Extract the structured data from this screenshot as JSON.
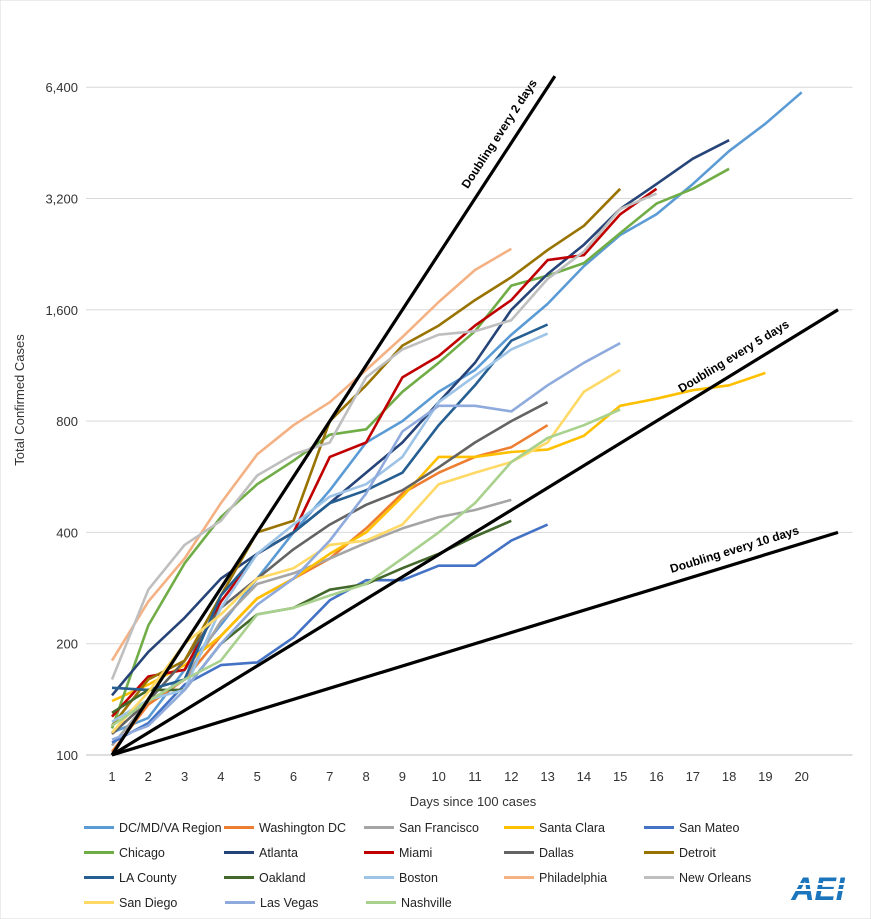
{
  "chart_data": {
    "type": "line",
    "scale": "log2",
    "ylabel": "Total Confirmed Cases",
    "xlabel": "Days since 100 cases",
    "y_ticks": [
      100,
      200,
      400,
      800,
      1600,
      3200,
      6400
    ],
    "y_tick_labels": [
      "100",
      "200",
      "400",
      "800",
      "1,600",
      "3,200",
      "6,400"
    ],
    "x_ticks": [
      1,
      2,
      3,
      4,
      5,
      6,
      7,
      8,
      9,
      10,
      11,
      12,
      13,
      14,
      15,
      16,
      17,
      18,
      19,
      20
    ],
    "xlim": [
      0.8,
      21.4
    ],
    "ylim": [
      100,
      8200
    ],
    "reference_lines": [
      {
        "label": "Doubling every 2 days",
        "doubling_days": 2,
        "x_end": 13.2
      },
      {
        "label": "Doubling every 5 days",
        "doubling_days": 5,
        "x_end": 21
      },
      {
        "label": "Doubling every 10 days",
        "doubling_days": 10,
        "x_end": 21
      }
    ],
    "series": [
      {
        "name": "DC/MD/VA Region",
        "color": "#5b9bd5",
        "values": [
          115,
          126,
          170,
          225,
          300,
          400,
          520,
          700,
          800,
          960,
          1100,
          1370,
          1660,
          2100,
          2550,
          2900,
          3500,
          4300,
          5100,
          6200
        ]
      },
      {
        "name": "Washington DC",
        "color": "#ed7d31",
        "values": [
          102,
          137,
          160,
          210,
          265,
          300,
          340,
          410,
          510,
          580,
          640,
          680,
          780
        ]
      },
      {
        "name": "San Francisco",
        "color": "#a5a5a5",
        "values": [
          106,
          140,
          160,
          230,
          290,
          310,
          340,
          375,
          410,
          440,
          460,
          490
        ]
      },
      {
        "name": "Santa Clara",
        "color": "#ffc000",
        "values": [
          140,
          155,
          175,
          210,
          265,
          300,
          350,
          400,
          500,
          640,
          640,
          660,
          670,
          730,
          880,
          920,
          970,
          1000,
          1080
        ]
      },
      {
        "name": "San Mateo",
        "color": "#4472c4",
        "values": [
          108,
          122,
          155,
          175,
          178,
          208,
          262,
          297,
          297,
          325,
          325,
          380,
          420
        ]
      },
      {
        "name": "Chicago",
        "color": "#70ad47",
        "values": [
          118,
          224,
          330,
          440,
          540,
          625,
          735,
          760,
          960,
          1150,
          1400,
          1860,
          1980,
          2140,
          2580,
          3100,
          3400,
          3850
        ]
      },
      {
        "name": "Atlanta",
        "color": "#264478",
        "values": [
          145,
          190,
          235,
          300,
          350,
          400,
          480,
          580,
          700,
          900,
          1150,
          1600,
          2000,
          2400,
          3000,
          3500,
          4100,
          4600
        ]
      },
      {
        "name": "Miami",
        "color": "#c00000",
        "values": [
          127,
          163,
          170,
          260,
          350,
          400,
          640,
          700,
          1050,
          1200,
          1450,
          1700,
          2180,
          2250,
          2900,
          3400
        ]
      },
      {
        "name": "Dallas",
        "color": "#636363",
        "values": [
          114,
          140,
          180,
          250,
          300,
          360,
          420,
          475,
          520,
          600,
          700,
          800,
          900
        ]
      },
      {
        "name": "Detroit",
        "color": "#997300",
        "values": [
          120,
          160,
          180,
          270,
          400,
          430,
          800,
          1000,
          1280,
          1450,
          1700,
          1960,
          2320,
          2700,
          3400
        ]
      },
      {
        "name": "LA County",
        "color": "#255e91",
        "values": [
          152,
          150,
          160,
          270,
          350,
          400,
          480,
          520,
          580,
          780,
          1000,
          1320,
          1460
        ]
      },
      {
        "name": "Oakland",
        "color": "#43682b",
        "values": [
          130,
          150,
          150,
          200,
          240,
          250,
          280,
          290,
          320,
          350,
          390,
          430
        ]
      },
      {
        "name": "Boston",
        "color": "#9dc3e6",
        "values": [
          123,
          141,
          150,
          250,
          350,
          420,
          500,
          540,
          640,
          900,
          1060,
          1250,
          1380
        ]
      },
      {
        "name": "Philadelphia",
        "color": "#f4b183",
        "values": [
          180,
          260,
          340,
          480,
          650,
          780,
          900,
          1100,
          1350,
          1680,
          2050,
          2340
        ]
      },
      {
        "name": "New Orleans",
        "color": "#bfbfbf",
        "values": [
          160,
          280,
          370,
          430,
          570,
          650,
          700,
          1050,
          1250,
          1370,
          1400,
          1500,
          1940,
          2300,
          3000,
          3300
        ]
      },
      {
        "name": "San Diego",
        "color": "#ffd966",
        "values": [
          115,
          148,
          200,
          240,
          300,
          320,
          370,
          380,
          420,
          540,
          580,
          620,
          700,
          960,
          1100
        ]
      },
      {
        "name": "Las Vegas",
        "color": "#8faadc",
        "values": [
          110,
          120,
          150,
          200,
          255,
          300,
          380,
          510,
          750,
          880,
          880,
          850,
          1000,
          1150,
          1300
        ]
      },
      {
        "name": "Nashville",
        "color": "#a9d18e",
        "values": [
          120,
          140,
          160,
          180,
          240,
          250,
          270,
          290,
          340,
          400,
          480,
          620,
          720,
          780,
          860
        ]
      }
    ]
  },
  "logo_text": "AEI"
}
